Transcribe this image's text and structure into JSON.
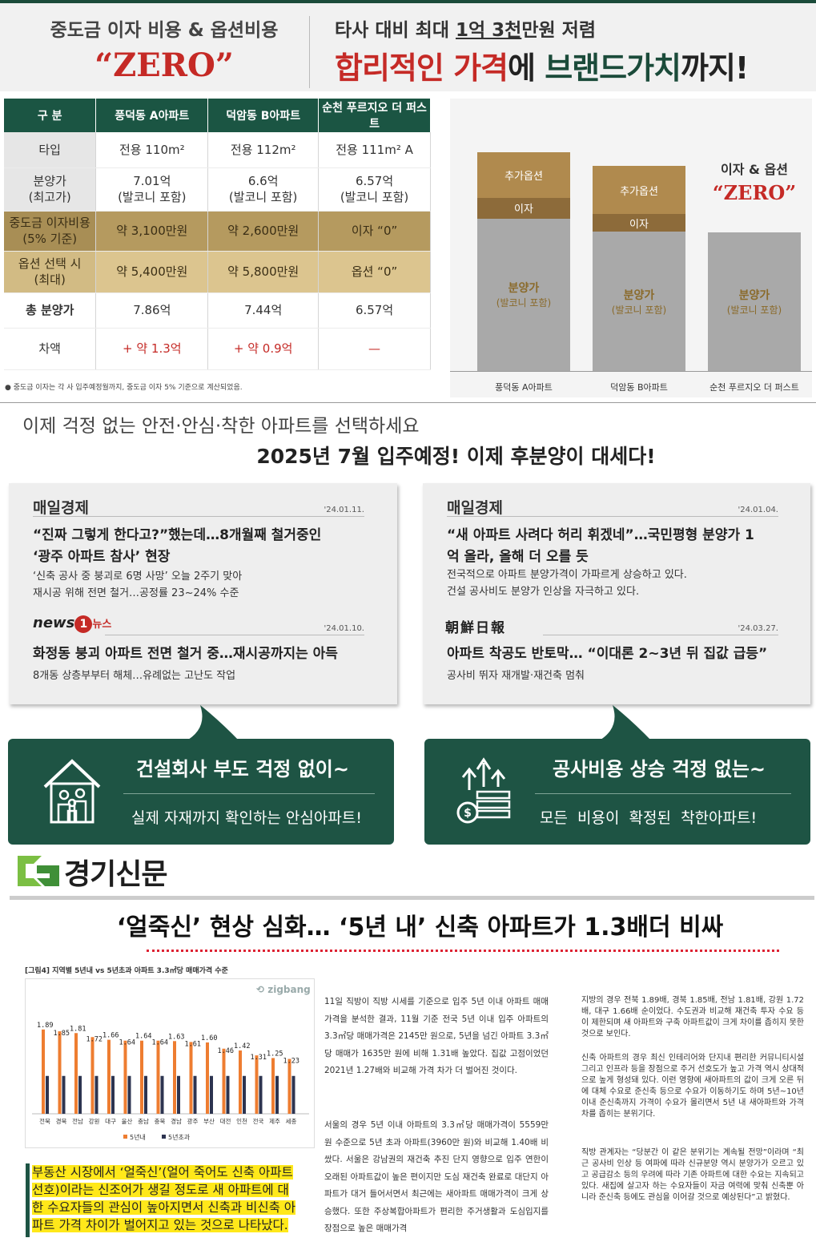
{
  "header": {
    "left_line1": "중도금 이자 비용 & 옵션비용",
    "left_zero": "“ZERO”",
    "right_line1_a": "타사 대비 최대 ",
    "right_line1_u": "1억 3천",
    "right_line1_b": "만원 저렴",
    "right_line2_a": "합리적인 가격",
    "right_line2_b": "에 ",
    "right_line2_c": "브랜드가치",
    "right_line2_d": "까지!"
  },
  "table": {
    "headers": [
      "구 분",
      "풍덕동 A아파트",
      "덕암동 B아파트",
      "순천 푸르지오 더 퍼스트"
    ],
    "rows": [
      {
        "label": "타입",
        "cells": [
          "전용 110m²",
          "전용 112m²",
          "전용 111m² A"
        ]
      },
      {
        "label": "분양가\n(최고가)",
        "cells": [
          "7.01억\n(발코니 포함)",
          "6.6억\n(발코니 포함)",
          "6.57억\n(발코니 포함)"
        ]
      },
      {
        "label": "중도금 이자비용\n(5% 기준)",
        "cells": [
          "약 3,100만원",
          "약 2,600만원",
          "이자 “0”"
        ]
      },
      {
        "label": "옵션 선택 시\n(최대)",
        "cells": [
          "약 5,400만원",
          "약 5,800만원",
          "옵션 “0”"
        ]
      },
      {
        "label": "총 분양가",
        "cells": [
          "7.86억",
          "7.44억",
          "6.57억"
        ]
      },
      {
        "label": "차액",
        "cells": [
          "+ 약 1.3억",
          "+ 약 0.9억",
          "—"
        ]
      }
    ],
    "footnote": "● 중도금 이자는 각 사 입주예정월까지, 중도금 이자 5% 기준으로 계산되었음."
  },
  "bar_chart": {
    "categories": [
      "풍덕동 A아파트",
      "덕암동 B아파트",
      "순천 푸르지오 더 퍼스트"
    ],
    "segment_labels": {
      "option": "추가옵션",
      "interest": "이자",
      "base": "분양가",
      "base_sub": "(발코니 포함)"
    },
    "values_100m_won": [
      {
        "base": 7.01,
        "interest": 0.31,
        "option": 0.54
      },
      {
        "base": 6.6,
        "interest": 0.26,
        "option": 0.58
      },
      {
        "base": 6.57,
        "interest": 0,
        "option": 0
      }
    ],
    "zero_label": "이자 & 옵션",
    "zero_big": "“ZERO”"
  },
  "slogan1": "이제 걱정 없는 안전·안심·착한 아파트를 선택하세요",
  "slogan2": "2025년 7월 입주예정! 이제 후분양이 대세다!",
  "news_left": [
    {
      "publisher": "매일경제",
      "date": "'24.01.11.",
      "headline": "“진짜 그렇게 한다고?”했는데…8개월째 철거중인\n‘광주 아파트 참사’ 현장",
      "sub": "‘신축 공사 중 붕괴로 6명 사망’ 오늘 2주기 맞아\n재시공 위해 전면 철거…공정률 23~24% 수준"
    },
    {
      "publisher": "news1 뉴스",
      "date": "'24.01.10.",
      "headline": "화정동 붕괴 아파트 전면 철거 중…재시공까지는 아득",
      "sub": "8개동 상층부부터 해체…유례없는 고난도 작업"
    }
  ],
  "news_right": [
    {
      "publisher": "매일경제",
      "date": "'24.01.04.",
      "headline": "“새 아파트 사려다 허리 휘겠네”…국민평형 분양가 1\n억 올라, 올해 더 오를 듯",
      "sub": "전국적으로 아파트 분양가격이 가파르게 상승하고 있다.\n건설 공사비도 분양가 인상을 자극하고 있다."
    },
    {
      "publisher": "朝鮮日報",
      "date": "'24.03.27.",
      "headline": "아파트 착공도 반토막… “이대론 2~3년 뒤 집값 급등”",
      "sub": "공사비 뛰자 재개발·재건축 멈춰"
    }
  ],
  "banner_left": {
    "main": "건설회사 부도 걱정 없이~",
    "sub": "실제 자재까지 확인하는 안심아파트!",
    "icon": "house-family-icon"
  },
  "banner_right": {
    "main": "공사비용 상승 걱정 없는~",
    "sub": "모든  비용이  확정된  착한아파트!",
    "icon": "money-growth-icon"
  },
  "kyunggi": {
    "logo": "경기신문",
    "title": "‘얼죽신’ 현상 심화… ‘5년 내’ 신축 아파트가 1.3배더 비싸",
    "fig_caption": "[그림4] 지역별  5년내  vs 5년초과 아파트 3.3㎡당 매매가격 수준",
    "fig_brand": "zigbang",
    "col1": "11일 직방이 직방 시세를 기준으로 입주 5년 이내 아파트 매매 가격을 분석한 결과, 11월 기준 전국 5년 이내 입주 아파트의 3.3㎡당 매매가격은 2145만 원으로, 5년을 넘긴 아파트 3.3㎡당 매매가 1635만 원에 비해 1.31배 높았다. 집값 고점이었던 2021년 1.27배와 비교해 가격 차가 더 벌어진 것이다.",
    "col1b": "서울의 경우 5년 이내 아파트의 3.3㎡당 매매가격이 5559만 원 수준으로 5년 초과 아파트(3960만 원)와 비교해 1.40배 비쌌다. 서울은 강남권의 재건축 추진 단지 영향으로 입주 연한이 오래된 아파트값이 높은 편이지만 도심 재건축 완료로 대단지 아파트가 대거 들어서면서 최근에는 새아파트 매매가격이 크게 상승했다. 또한 주상복합아파트가 편리한 주거생활과 도심입지를 장점으로 높은 매매가격",
    "col2": "지방의 경우 전북 1.89배, 경북 1.85배, 전남 1.81배, 강원 1.72배, 대구 1.66배 순이었다. 수도권과 비교해 재건축 투자 수요 등이 제한되며 새 아파트와 구축 아파트값이 크게 차이를 좁히지 못한 것으로 보인다.",
    "col2b": "신축 아파트의 경우 최신 인테리어와 단지내 편리한 커뮤니티시설 그리고 인프라 등을 장점으로 주거 선호도가 높고 가격 역시 상대적으로 높게 형성돼 있다. 이런 영향에 새아파트의 값이 크게 오른 뒤에 대체 수요로 준신축 등으로 수요가 이동하기도 하며 5년~10년 이내 준신축까지 가격이 수요가 몰리면서 5년 내 새아파트와 가격차를 좁히는 분위기다.",
    "col2c": "직방 관계자는 “당분간 이 같은 분위기는 계속될 전망”이라며 “최근 공사비 인상 등 여파에 따라 신규분양 역시 분양가가 오르고 있고 공급감소 등의 우려에 따라 기존 아파트에 대한 수요는 지속되고 있다. 새집에 살고자 하는 수요자들이 자금 여력에 맞춰 신축뿐 아니라 준신축 등에도 관심을 이어갈 것으로 예상된다”고 밝혔다.",
    "highlight": "부동산 시장에서 ‘얼죽신’(얼어 죽어도 신축 아파트 선호)이라는 신조어가 생길 정도로 새 아파트에 대한 수요자들의 관심이 높아지면서 신축과 비신축 아파트 가격 차이가 벌어지고 있는 것으로 나타났다."
  },
  "chart_data": {
    "type": "bar",
    "title": "[그림4] 지역별  5년내  vs 5년초과 아파트 3.3㎡당 매매가격 수준",
    "categories": [
      "전북",
      "경북",
      "전남",
      "강원",
      "대구",
      "울산",
      "충남",
      "충북",
      "경남",
      "광주",
      "부산",
      "대전",
      "인천",
      "전국",
      "제주",
      "세종"
    ],
    "series": [
      {
        "name": "5년내",
        "color": "#ee7d31",
        "values": [
          1.89,
          1.85,
          1.81,
          1.72,
          1.66,
          1.64,
          1.64,
          1.64,
          1.63,
          1.61,
          1.6,
          1.46,
          1.42,
          1.31,
          1.25,
          1.23
        ]
      },
      {
        "name": "5년초과",
        "color": "#2d3450",
        "values": [
          1,
          1,
          1,
          1,
          1,
          1,
          1,
          1,
          1,
          1,
          1,
          1,
          1,
          1,
          1,
          1
        ]
      }
    ],
    "data_labels": [
      "1.89",
      "1.85",
      "1.81",
      "1.72",
      "1.66",
      "1.64",
      "1.64",
      "1.64",
      "1.63",
      "1.61",
      "1.60",
      "1.46",
      "1.42",
      "1.31",
      "1.25",
      "1.23"
    ],
    "legend": "bottom"
  }
}
